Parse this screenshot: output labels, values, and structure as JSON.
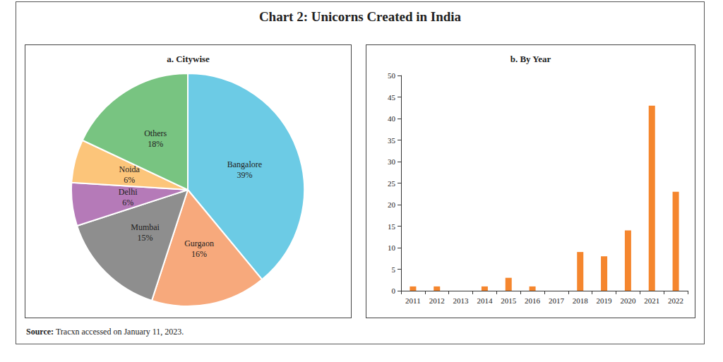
{
  "title": "Chart 2: Unicorns Created in India",
  "source": {
    "label": "Source:",
    "text": "Tracxn accessed on January 11, 2023."
  },
  "chart_data": [
    {
      "type": "pie",
      "title": "a. Citywise",
      "categories": [
        "Bangalore",
        "Gurgaon",
        "Mumbai",
        "Delhi",
        "Noida",
        "Others"
      ],
      "values": [
        39,
        16,
        15,
        6,
        6,
        18
      ],
      "value_labels": [
        "39%",
        "16%",
        "15%",
        "6%",
        "6%",
        "18%"
      ],
      "colors": [
        "#6ccbe5",
        "#f7a97c",
        "#8e8e8e",
        "#b57ab8",
        "#fcc57a",
        "#78c481"
      ],
      "data_labels": true
    },
    {
      "type": "bar",
      "title": "b. By Year",
      "categories": [
        "2011",
        "2012",
        "2013",
        "2014",
        "2015",
        "2016",
        "2017",
        "2018",
        "2019",
        "2020",
        "2021",
        "2022"
      ],
      "values": [
        1,
        1,
        0,
        1,
        3,
        1,
        0,
        9,
        8,
        14,
        43,
        23
      ],
      "color": "#f5862e",
      "ylim": [
        0,
        50
      ],
      "yticks": [
        0,
        5,
        10,
        15,
        20,
        25,
        30,
        35,
        40,
        45,
        50
      ],
      "grid": false
    }
  ]
}
